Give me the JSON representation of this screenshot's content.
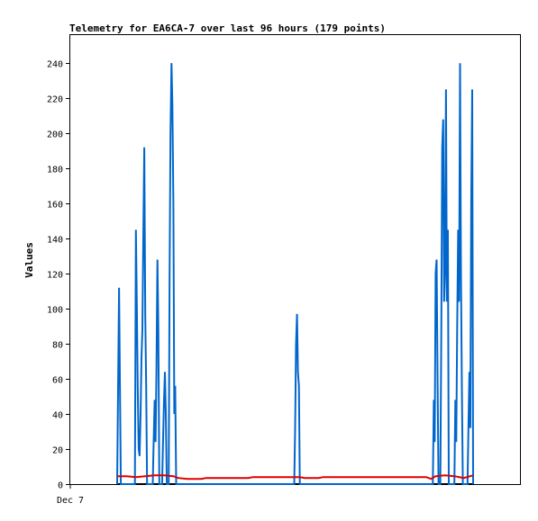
{
  "chart_data": {
    "type": "line",
    "title": "Telemetry for EA6CA-7 over last 96 hours (179 points)",
    "xlabel": "",
    "ylabel": "Values",
    "x_tick_labels": [
      "Dec 7"
    ],
    "y_ticks": [
      0,
      20,
      40,
      60,
      80,
      100,
      120,
      140,
      160,
      180,
      200,
      220,
      240
    ],
    "ylim": [
      0,
      256
    ],
    "xlim": [
      0,
      96
    ],
    "grid": false,
    "legend": "none",
    "series": [
      {
        "color": "#0066cc",
        "points": [
          [
            10.0,
            0
          ],
          [
            10.4,
            112
          ],
          [
            10.6,
            56
          ],
          [
            10.8,
            0
          ],
          [
            13.8,
            0
          ],
          [
            14.0,
            145
          ],
          [
            14.2,
            104
          ],
          [
            14.4,
            56
          ],
          [
            14.6,
            20
          ],
          [
            14.8,
            16
          ],
          [
            15.0,
            40
          ],
          [
            15.2,
            72
          ],
          [
            15.4,
            88
          ],
          [
            15.6,
            145
          ],
          [
            15.8,
            192
          ],
          [
            16.0,
            96
          ],
          [
            16.2,
            56
          ],
          [
            16.4,
            0
          ],
          [
            17.6,
            0
          ],
          [
            17.8,
            24
          ],
          [
            18.0,
            48
          ],
          [
            18.2,
            24
          ],
          [
            18.4,
            64
          ],
          [
            18.6,
            128
          ],
          [
            18.8,
            88
          ],
          [
            19.0,
            0
          ],
          [
            19.6,
            0
          ],
          [
            19.8,
            24
          ],
          [
            20.0,
            48
          ],
          [
            20.2,
            64
          ],
          [
            20.4,
            40
          ],
          [
            20.6,
            0
          ],
          [
            21.0,
            0
          ],
          [
            21.2,
            120
          ],
          [
            21.4,
            200
          ],
          [
            21.6,
            240
          ],
          [
            21.8,
            216
          ],
          [
            22.0,
            160
          ],
          [
            22.2,
            40
          ],
          [
            22.4,
            56
          ],
          [
            22.6,
            0
          ],
          [
            47.8,
            0
          ],
          [
            48.0,
            32
          ],
          [
            48.2,
            80
          ],
          [
            48.4,
            97
          ],
          [
            48.6,
            64
          ],
          [
            48.8,
            56
          ],
          [
            49.0,
            0
          ],
          [
            77.4,
            0
          ],
          [
            77.6,
            48
          ],
          [
            77.8,
            24
          ],
          [
            78.0,
            120
          ],
          [
            78.2,
            128
          ],
          [
            78.4,
            64
          ],
          [
            78.6,
            0
          ],
          [
            79.0,
            0
          ],
          [
            79.2,
            88
          ],
          [
            79.4,
            192
          ],
          [
            79.6,
            208
          ],
          [
            79.8,
            104
          ],
          [
            80.0,
            120
          ],
          [
            80.2,
            225
          ],
          [
            80.4,
            104
          ],
          [
            80.6,
            145
          ],
          [
            80.8,
            0
          ],
          [
            82.0,
            0
          ],
          [
            82.2,
            48
          ],
          [
            82.4,
            24
          ],
          [
            82.6,
            88
          ],
          [
            82.8,
            145
          ],
          [
            83.0,
            104
          ],
          [
            83.2,
            240
          ],
          [
            83.4,
            120
          ],
          [
            83.6,
            56
          ],
          [
            83.8,
            0
          ],
          [
            84.8,
            0
          ],
          [
            85.0,
            32
          ],
          [
            85.2,
            64
          ],
          [
            85.4,
            32
          ],
          [
            85.6,
            160
          ],
          [
            85.8,
            225
          ],
          [
            86.0,
            0
          ]
        ]
      },
      {
        "color": "#dd0000",
        "points": [
          [
            10.0,
            4.5
          ],
          [
            12.0,
            4.5
          ],
          [
            14.0,
            4.0
          ],
          [
            16.0,
            4.5
          ],
          [
            18.0,
            5.0
          ],
          [
            20.0,
            5.0
          ],
          [
            22.0,
            4.5
          ],
          [
            23.0,
            3.5
          ],
          [
            25.0,
            3.0
          ],
          [
            28.0,
            3.0
          ],
          [
            29.0,
            3.5
          ],
          [
            33.0,
            3.5
          ],
          [
            38.0,
            3.5
          ],
          [
            39.0,
            4.0
          ],
          [
            45.0,
            4.0
          ],
          [
            49.0,
            4.0
          ],
          [
            50.0,
            3.5
          ],
          [
            53.0,
            3.5
          ],
          [
            54.0,
            4.0
          ],
          [
            60.0,
            4.0
          ],
          [
            70.0,
            4.0
          ],
          [
            76.0,
            4.0
          ],
          [
            77.0,
            3.0
          ],
          [
            78.0,
            4.5
          ],
          [
            80.0,
            5.0
          ],
          [
            82.0,
            4.5
          ],
          [
            84.0,
            3.5
          ],
          [
            86.0,
            5.0
          ]
        ]
      },
      {
        "color": "#000000",
        "points": [
          [
            10.0,
            0
          ],
          [
            86.0,
            0
          ]
        ]
      }
    ]
  }
}
